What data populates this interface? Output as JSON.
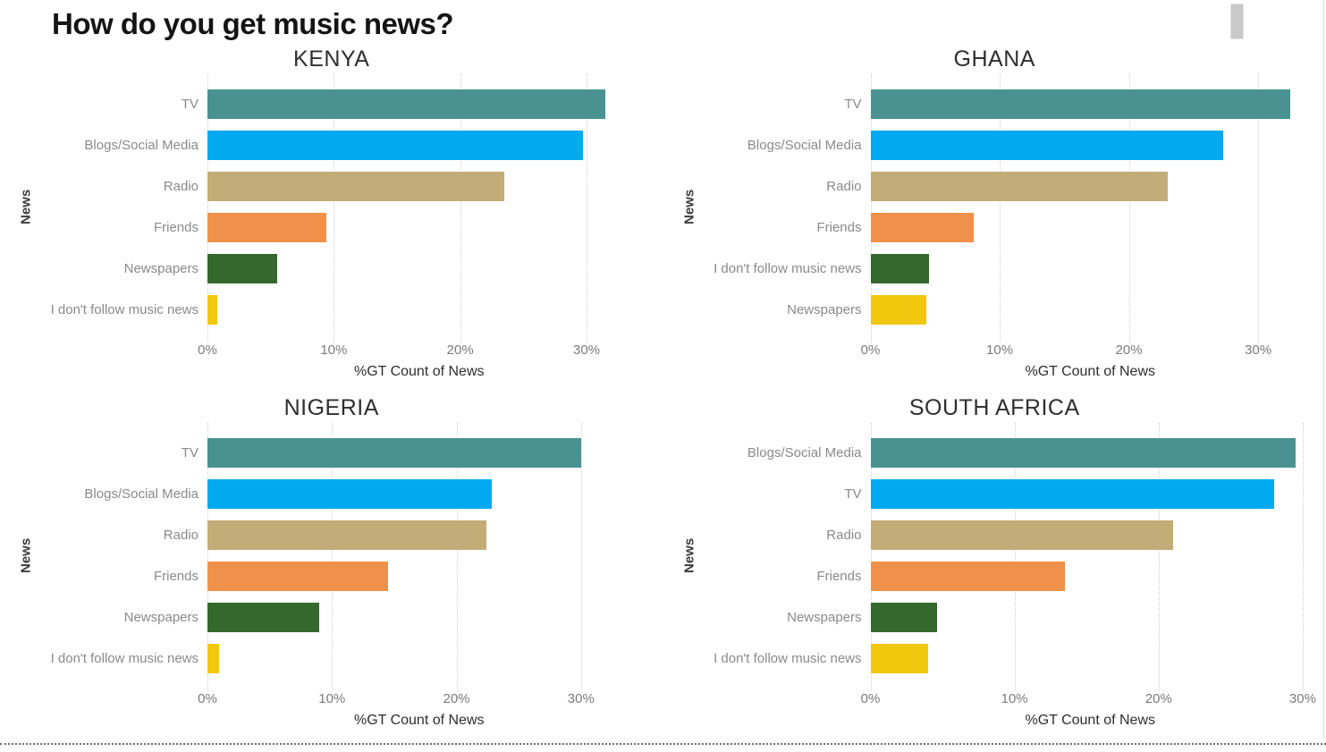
{
  "page": {
    "title": "How do you get music news?"
  },
  "palette": {
    "bar_rank_colors": [
      "#4A9292",
      "#00A9F0",
      "#C2AD78",
      "#F0914B",
      "#35682D",
      "#F2C80F"
    ]
  },
  "chart_data": [
    {
      "type": "bar",
      "orientation": "horizontal",
      "title": "KENYA",
      "xlabel": "%GT Count of News",
      "ylabel": "News",
      "xlim": [
        0,
        33.5
      ],
      "xticks": [
        0,
        10,
        20,
        30
      ],
      "xtick_labels": [
        "0%",
        "10%",
        "20%",
        "30%"
      ],
      "grid": "vertical-dotted",
      "categories": [
        "TV",
        "Blogs/Social Media",
        "Radio",
        "Friends",
        "Newspapers",
        "I don't follow music news"
      ],
      "values": [
        31.5,
        29.7,
        23.5,
        9.4,
        5.5,
        0.8
      ]
    },
    {
      "type": "bar",
      "orientation": "horizontal",
      "title": "GHANA",
      "xlabel": "%GT Count of News",
      "ylabel": "News",
      "xlim": [
        0,
        34
      ],
      "xticks": [
        0,
        10,
        20,
        30
      ],
      "xtick_labels": [
        "0%",
        "10%",
        "20%",
        "30%"
      ],
      "grid": "vertical-dotted",
      "categories": [
        "TV",
        "Blogs/Social Media",
        "Radio",
        "Friends",
        "I don't follow music news",
        "Newspapers"
      ],
      "values": [
        32.5,
        27.3,
        23.0,
        8.0,
        4.5,
        4.3
      ]
    },
    {
      "type": "bar",
      "orientation": "horizontal",
      "title": "NIGERIA",
      "xlabel": "%GT Count of News",
      "ylabel": "News",
      "xlim": [
        0,
        34
      ],
      "xticks": [
        0,
        10,
        20,
        30
      ],
      "xtick_labels": [
        "0%",
        "10%",
        "20%",
        "30%"
      ],
      "grid": "vertical-dotted",
      "categories": [
        "TV",
        "Blogs/Social Media",
        "Radio",
        "Friends",
        "Newspapers",
        "I don't follow music news"
      ],
      "values": [
        30.0,
        22.8,
        22.4,
        14.5,
        9.0,
        0.9
      ]
    },
    {
      "type": "bar",
      "orientation": "horizontal",
      "title": "SOUTH AFRICA",
      "xlabel": "%GT Count of News",
      "ylabel": "News",
      "xlim": [
        0,
        30.5
      ],
      "xticks": [
        0,
        10,
        20,
        30
      ],
      "xtick_labels": [
        "0%",
        "10%",
        "20%",
        "30%"
      ],
      "grid": "vertical-dotted",
      "categories": [
        "Blogs/Social Media",
        "TV",
        "Radio",
        "Friends",
        "Newspapers",
        "I don't follow music news"
      ],
      "values": [
        29.5,
        28.0,
        21.0,
        13.5,
        4.6,
        4.0
      ]
    }
  ]
}
